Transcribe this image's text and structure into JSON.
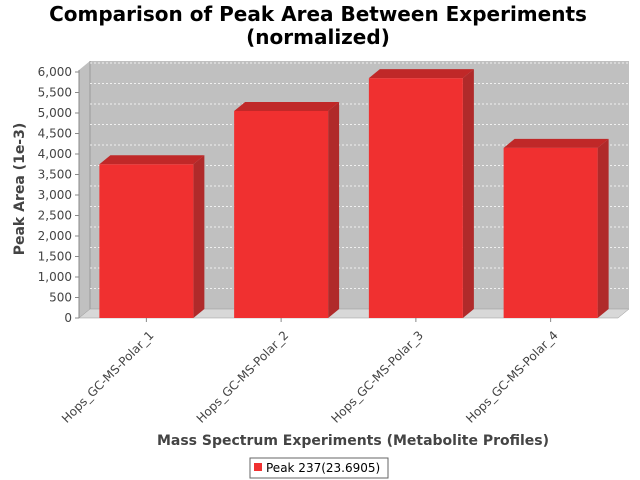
{
  "chart_data": {
    "type": "bar",
    "title_lines": [
      "Comparison of Peak Area Between Experiments",
      "(normalized)"
    ],
    "xlabel": "Mass Spectrum Experiments (Metabolite Profiles)",
    "ylabel": "Peak Area (1e-3)",
    "categories": [
      "Hops_GC-MS-Polar_1",
      "Hops_GC-MS-Polar_2",
      "Hops_GC-MS-Polar_3",
      "Hops_GC-MS-Polar_4"
    ],
    "series": [
      {
        "name": "Peak 237(23.6905)",
        "values": [
          3750,
          5050,
          5850,
          4150
        ]
      }
    ],
    "ylim": [
      0,
      6000
    ],
    "yticks": [
      0,
      500,
      1000,
      1500,
      2000,
      2500,
      3000,
      3500,
      4000,
      4500,
      5000,
      5500,
      6000
    ],
    "ytick_labels": [
      "0",
      "500",
      "1,000",
      "1,500",
      "2,000",
      "2,500",
      "3,000",
      "3,500",
      "4,000",
      "4,500",
      "5,000",
      "5,500",
      "6,000"
    ],
    "grid": true,
    "legend_position": "bottom",
    "colors": {
      "bar_front": "#f03030",
      "bar_top": "#c02828",
      "bar_side": "#b02a2a",
      "plot_bg": "#c0c0c0",
      "plot_floor": "#d8d8d8"
    }
  }
}
